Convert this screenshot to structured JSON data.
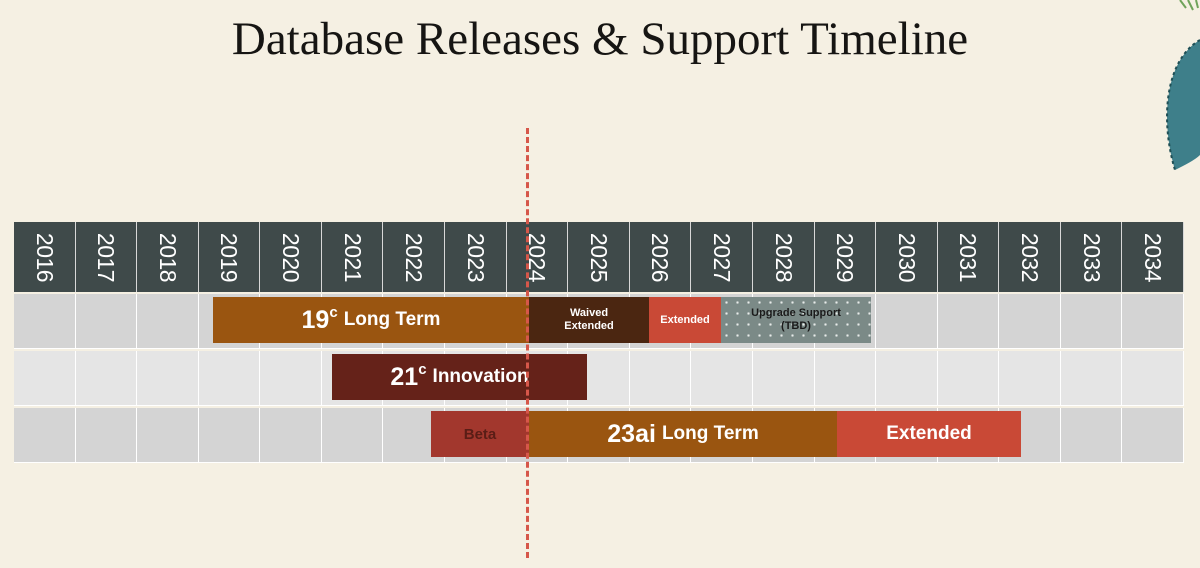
{
  "title": "Database Releases & Support Timeline",
  "years": [
    "2016",
    "2017",
    "2018",
    "2019",
    "2020",
    "2021",
    "2022",
    "2023",
    "2024",
    "2025",
    "2026",
    "2027",
    "2028",
    "2029",
    "2030",
    "2031",
    "2032",
    "2033",
    "2034"
  ],
  "colors": {
    "background": "#f5f0e3",
    "header": "#3f4a4a",
    "row_dark": "#d4d4d4",
    "row_light": "#e5e5e5",
    "long_term": "#9a5510",
    "innovation": "#652219",
    "waived": "#4b2611",
    "extended": "#c94936",
    "beta": "#a2372d",
    "upgrade": "#7b8a87",
    "now_line": "#d6574a"
  },
  "bars": {
    "r19_long": {
      "version": "19",
      "suffix": "c",
      "label": "Long Term"
    },
    "r19_waived": {
      "line1": "Waived",
      "line2": "Extended"
    },
    "r19_extended": {
      "label": "Extended"
    },
    "r19_upgrade": {
      "line1": "Upgrade Support",
      "line2": "(TBD)"
    },
    "r21_innovation": {
      "version": "21",
      "suffix": "c",
      "label": "Innovation"
    },
    "r23_beta": {
      "label": "Beta"
    },
    "r23_long": {
      "version": "23ai",
      "label": "Long Term"
    },
    "r23_extended": {
      "label": "Extended"
    }
  }
}
